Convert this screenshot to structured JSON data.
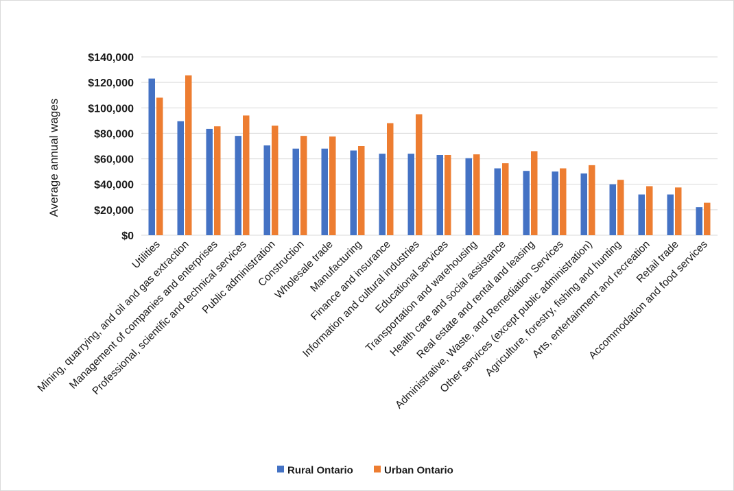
{
  "chart_data": {
    "type": "bar",
    "title": "",
    "xlabel": "",
    "ylabel": "Average annual wages",
    "ylim": [
      0,
      140000
    ],
    "yticks": [
      0,
      20000,
      40000,
      60000,
      80000,
      100000,
      120000,
      140000
    ],
    "ytick_labels": [
      "$0",
      "$20,000",
      "$40,000",
      "$60,000",
      "$80,000",
      "$100,000",
      "$120,000",
      "$140,000"
    ],
    "grid": true,
    "legend_position": "bottom",
    "categories": [
      "Utilities",
      "Mining, quarrying, and oil and gas extraction",
      "Management of companies and enterprises",
      "Professional, scientific and technical services",
      "Public administration",
      "Construction",
      "Wholesale trade",
      "Manufacturing",
      "Finance and insurance",
      "Information and cultural industries",
      "Educational services",
      "Transportation and warehousing",
      "Health care and social assistance",
      "Real estate and rental and leasing",
      "Administrative, Waste, and Remediation Services",
      "Other services (except public administration)",
      "Agriculture, forestry, fishing and hunting",
      "Arts, entertainment and recreation",
      "Retail trade",
      "Accommodation and food services"
    ],
    "series": [
      {
        "name": "Rural Ontario",
        "color": "#4472c4",
        "values": [
          123000,
          89500,
          83500,
          78000,
          70500,
          68000,
          68000,
          66500,
          64000,
          64000,
          63000,
          60500,
          52500,
          50500,
          50000,
          48500,
          40000,
          32000,
          32000,
          22000
        ]
      },
      {
        "name": "Urban Ontario",
        "color": "#ed7d31",
        "values": [
          108000,
          125500,
          85500,
          94000,
          86000,
          78000,
          77500,
          70000,
          88000,
          95000,
          63000,
          63500,
          56500,
          66000,
          52500,
          55000,
          43500,
          38500,
          37500,
          25500
        ]
      }
    ]
  },
  "colors": {
    "grid": "#d9d9d9",
    "text": "#1a1a1a"
  }
}
